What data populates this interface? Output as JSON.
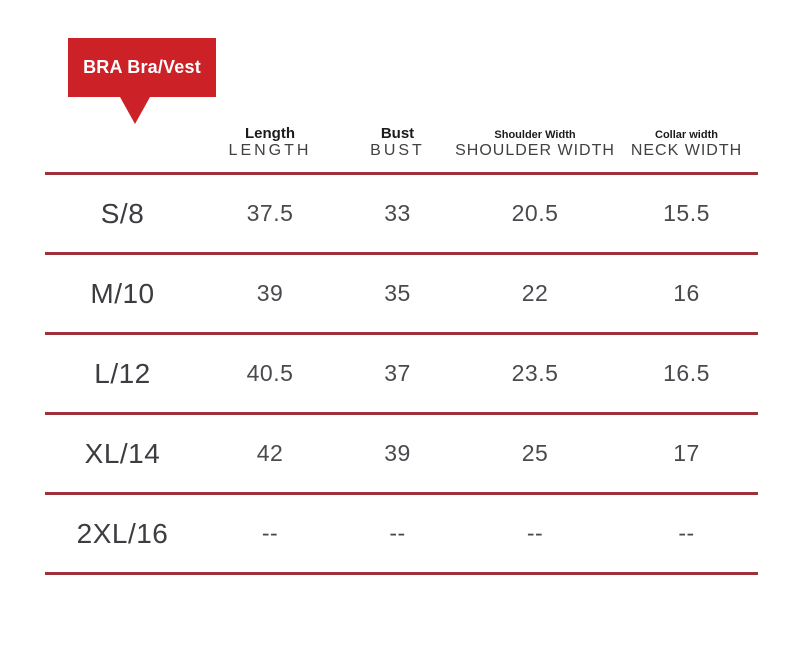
{
  "badge": {
    "label": "BRA Bra/Vest",
    "bg_color": "#cb2127",
    "text_color": "#ffffff"
  },
  "table": {
    "line_color": "#9e323a",
    "columns": [
      {
        "label_primary": "Length",
        "label_secondary": "LENGTH"
      },
      {
        "label_primary": "Bust",
        "label_secondary": "BUST"
      },
      {
        "label_primary": "Shoulder Width",
        "label_secondary": "SHOULDER WIDTH"
      },
      {
        "label_primary": "Collar width",
        "label_secondary": "NECK WIDTH"
      }
    ],
    "rows": [
      {
        "size": "S/8",
        "values": [
          "37.5",
          "33",
          "20.5",
          "15.5"
        ]
      },
      {
        "size": "M/10",
        "values": [
          "39",
          "35",
          "22",
          "16"
        ]
      },
      {
        "size": "L/12",
        "values": [
          "40.5",
          "37",
          "23.5",
          "16.5"
        ]
      },
      {
        "size": "XL/14",
        "values": [
          "42",
          "39",
          "25",
          "17"
        ]
      },
      {
        "size": "2XL/16",
        "values": [
          "--",
          "--",
          "--",
          "--"
        ]
      }
    ]
  },
  "chart_data": {
    "type": "table",
    "title": "BRA Bra/Vest",
    "columns": [
      "Size",
      "Length (LENGTH)",
      "Bust (BUST)",
      "Shoulder Width (SHOULDER WIDTH)",
      "Collar width (NECK WIDTH)"
    ],
    "rows": [
      [
        "S/8",
        37.5,
        33,
        20.5,
        15.5
      ],
      [
        "M/10",
        39,
        35,
        22,
        16
      ],
      [
        "L/12",
        40.5,
        37,
        23.5,
        16.5
      ],
      [
        "XL/14",
        42,
        39,
        25,
        17
      ],
      [
        "2XL/16",
        null,
        null,
        null,
        null
      ]
    ]
  }
}
